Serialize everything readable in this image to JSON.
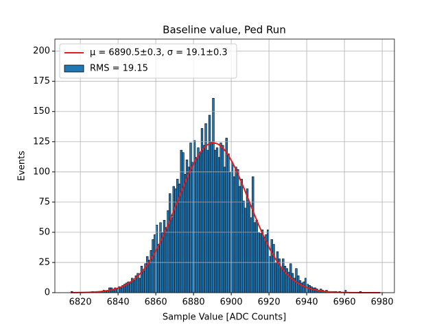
{
  "chart_data": {
    "type": "histogram",
    "title": "Baseline value, Ped Run",
    "x_label": "Sample Value [ADC Counts]",
    "y_label": "Events",
    "bins": [
      6815,
      6816,
      6817,
      6818,
      6819,
      6820,
      6821,
      6822,
      6823,
      6824,
      6825,
      6826,
      6827,
      6828,
      6829,
      6830,
      6831,
      6832,
      6833,
      6834,
      6835,
      6836,
      6837,
      6838,
      6839,
      6840,
      6841,
      6842,
      6843,
      6844,
      6845,
      6846,
      6847,
      6848,
      6849,
      6850,
      6851,
      6852,
      6853,
      6854,
      6855,
      6856,
      6857,
      6858,
      6859,
      6860,
      6861,
      6862,
      6863,
      6864,
      6865,
      6866,
      6867,
      6868,
      6869,
      6870,
      6871,
      6872,
      6873,
      6874,
      6875,
      6876,
      6877,
      6878,
      6879,
      6880,
      6881,
      6882,
      6883,
      6884,
      6885,
      6886,
      6887,
      6888,
      6889,
      6890,
      6891,
      6892,
      6893,
      6894,
      6895,
      6896,
      6897,
      6898,
      6899,
      6900,
      6901,
      6902,
      6903,
      6904,
      6905,
      6906,
      6907,
      6908,
      6909,
      6910,
      6911,
      6912,
      6913,
      6914,
      6915,
      6916,
      6917,
      6918,
      6919,
      6920,
      6921,
      6922,
      6923,
      6924,
      6925,
      6926,
      6927,
      6928,
      6929,
      6930,
      6931,
      6932,
      6933,
      6934,
      6935,
      6936,
      6937,
      6938,
      6939,
      6940,
      6941,
      6942,
      6943,
      6944,
      6945,
      6946,
      6947,
      6948,
      6949,
      6950,
      6951,
      6952,
      6953,
      6954,
      6955,
      6956,
      6957,
      6958,
      6959,
      6960,
      6961,
      6962,
      6963,
      6964,
      6965,
      6966,
      6967,
      6968,
      6969,
      6970,
      6971,
      6972,
      6973,
      6974,
      6975,
      6976,
      6977,
      6978,
      6979
    ],
    "values": [
      1,
      0,
      0,
      0,
      0,
      0,
      0,
      0,
      0,
      0,
      0,
      1,
      0,
      1,
      0,
      1,
      1,
      2,
      1,
      2,
      4,
      4,
      3,
      4,
      3,
      5,
      4,
      6,
      7,
      8,
      9,
      8,
      12,
      10,
      14,
      16,
      12,
      22,
      18,
      24,
      30,
      27,
      35,
      44,
      48,
      56,
      40,
      58,
      50,
      60,
      54,
      68,
      82,
      62,
      88,
      86,
      94,
      90,
      118,
      116,
      98,
      110,
      104,
      124,
      108,
      126,
      112,
      120,
      116,
      136,
      122,
      140,
      118,
      147,
      125,
      161,
      118,
      120,
      112,
      124,
      122,
      104,
      128,
      115,
      100,
      108,
      96,
      104,
      102,
      88,
      94,
      76,
      70,
      86,
      75,
      62,
      96,
      58,
      60,
      50,
      49,
      52,
      46,
      48,
      52,
      30,
      44,
      40,
      25,
      34,
      28,
      20,
      28,
      22,
      20,
      17,
      24,
      16,
      12,
      20,
      14,
      10,
      8,
      9,
      12,
      7,
      6,
      5,
      4,
      4,
      3,
      2,
      3,
      2,
      1,
      2,
      1,
      1,
      1,
      1,
      1,
      0,
      1,
      0,
      0,
      2,
      0,
      0,
      0,
      0,
      0,
      0,
      0,
      1,
      0,
      0,
      0,
      0,
      0,
      0,
      0,
      0,
      0,
      0
    ],
    "color": "#1f77b4",
    "name": "RMS = 19.15",
    "fit": {
      "name": "μ = 6890.5±0.3, σ = 19.1±0.3",
      "mu": 6890.5,
      "sigma": 19.1,
      "peak": 124,
      "color": "#e41a1c"
    },
    "xlim": [
      6806.5,
      6986.5
    ],
    "xticks": [
      6820,
      6840,
      6860,
      6880,
      6900,
      6920,
      6940,
      6960,
      6980
    ],
    "ylim": [
      0,
      210
    ],
    "yticks": [
      0,
      25,
      50,
      75,
      100,
      125,
      150,
      175,
      200
    ],
    "grid": true,
    "legend": "upper left"
  }
}
